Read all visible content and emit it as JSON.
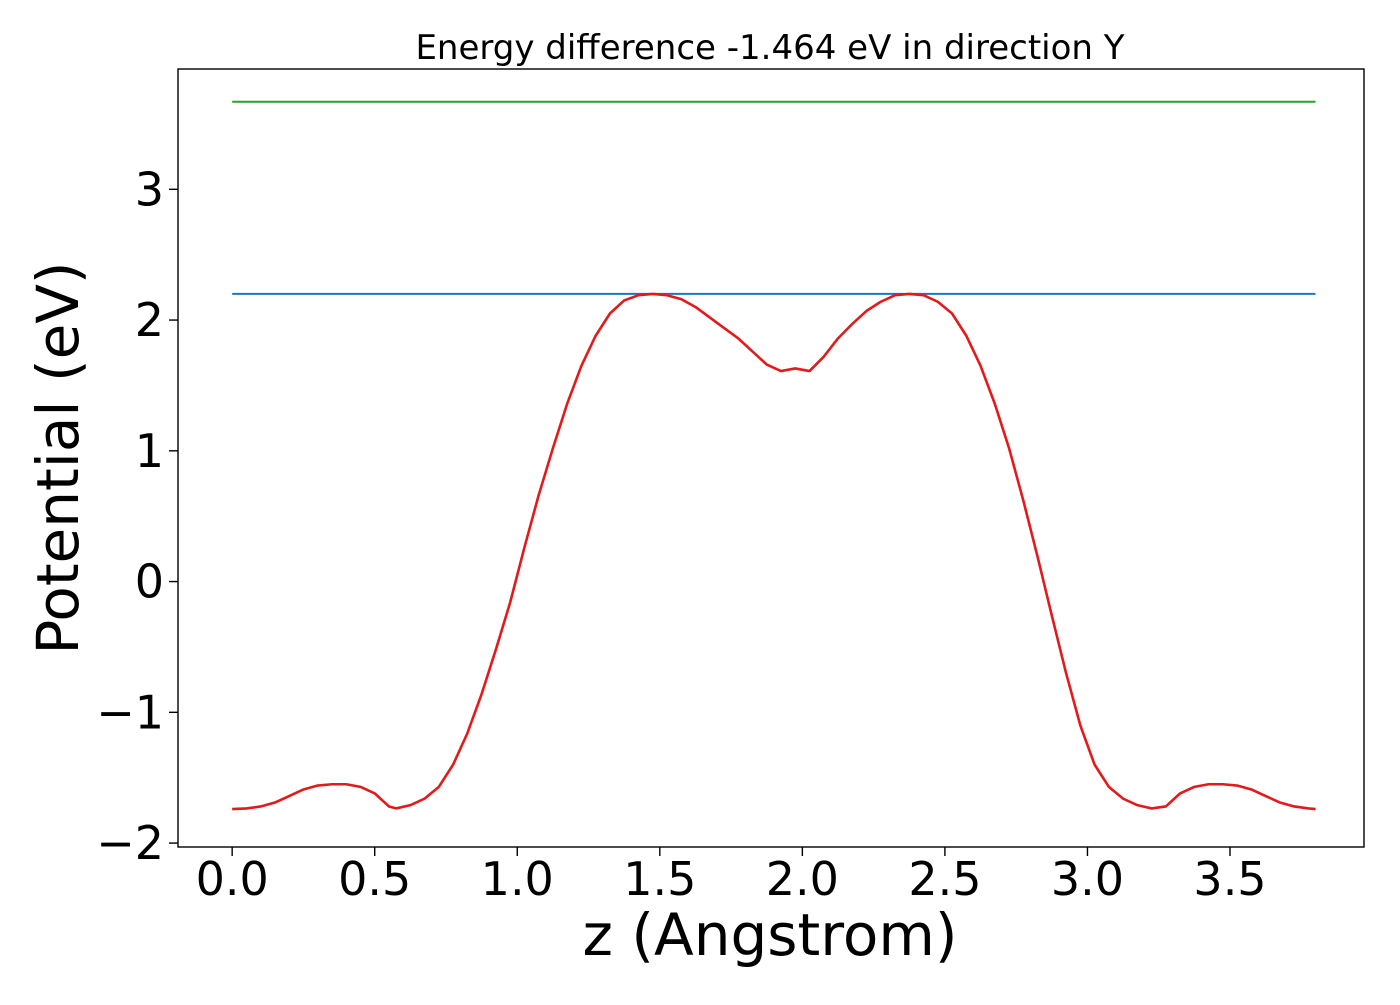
{
  "chart_data": {
    "type": "line",
    "title": "Energy difference -1.464 eV in direction Y",
    "xlabel": "z (Angstrom)",
    "ylabel": "Potential (eV)",
    "xlim": [
      -0.19,
      3.97
    ],
    "ylim": [
      -2.03,
      3.92
    ],
    "xticks": [
      0.0,
      0.5,
      1.0,
      1.5,
      2.0,
      2.5,
      3.0,
      3.5
    ],
    "xtick_labels": [
      "0.0",
      "0.5",
      "1.0",
      "1.5",
      "2.0",
      "2.5",
      "3.0",
      "3.5"
    ],
    "yticks": [
      -2,
      -1,
      0,
      1,
      2,
      3
    ],
    "ytick_labels": [
      "−2",
      "−1",
      "0",
      "1",
      "2",
      "3"
    ],
    "grid": false,
    "legend": "none",
    "series": [
      {
        "color": "#e31a1c",
        "x": [
          0.0,
          0.05,
          0.1,
          0.15,
          0.2,
          0.25,
          0.3,
          0.35,
          0.4,
          0.45,
          0.5,
          0.55,
          0.575,
          0.625,
          0.675,
          0.725,
          0.775,
          0.825,
          0.875,
          0.925,
          0.975,
          1.025,
          1.075,
          1.125,
          1.175,
          1.225,
          1.275,
          1.325,
          1.375,
          1.425,
          1.475,
          1.525,
          1.575,
          1.625,
          1.675,
          1.725,
          1.775,
          1.825,
          1.875,
          1.925,
          1.975,
          2.025,
          2.075,
          2.125,
          2.175,
          2.225,
          2.275,
          2.325,
          2.375,
          2.425,
          2.475,
          2.525,
          2.575,
          2.625,
          2.675,
          2.725,
          2.775,
          2.825,
          2.875,
          2.925,
          2.975,
          3.025,
          3.075,
          3.125,
          3.175,
          3.225,
          3.275,
          3.325,
          3.375,
          3.425,
          3.475,
          3.525,
          3.575,
          3.625,
          3.675,
          3.725,
          3.775,
          3.8
        ],
        "y": [
          -1.74,
          -1.735,
          -1.72,
          -1.69,
          -1.64,
          -1.59,
          -1.56,
          -1.55,
          -1.55,
          -1.57,
          -1.62,
          -1.72,
          -1.735,
          -1.71,
          -1.66,
          -1.57,
          -1.4,
          -1.16,
          -0.86,
          -0.52,
          -0.16,
          0.26,
          0.66,
          1.02,
          1.36,
          1.65,
          1.88,
          2.05,
          2.15,
          2.19,
          2.2,
          2.19,
          2.16,
          2.1,
          2.02,
          1.94,
          1.86,
          1.76,
          1.66,
          1.61,
          1.63,
          1.61,
          1.72,
          1.86,
          1.97,
          2.07,
          2.14,
          2.19,
          2.2,
          2.19,
          2.14,
          2.05,
          1.88,
          1.65,
          1.36,
          1.02,
          0.62,
          0.19,
          -0.26,
          -0.7,
          -1.1,
          -1.4,
          -1.57,
          -1.66,
          -1.71,
          -1.735,
          -1.72,
          -1.62,
          -1.57,
          -1.55,
          -1.55,
          -1.56,
          -1.59,
          -1.64,
          -1.69,
          -1.72,
          -1.735,
          -1.74
        ]
      },
      {
        "color": "#1f77b4",
        "x": [
          0.0,
          3.8
        ],
        "y": [
          2.2,
          2.2
        ]
      },
      {
        "color": "#2ca02c",
        "x": [
          0.0,
          3.8
        ],
        "y": [
          3.67,
          3.67
        ]
      }
    ]
  }
}
